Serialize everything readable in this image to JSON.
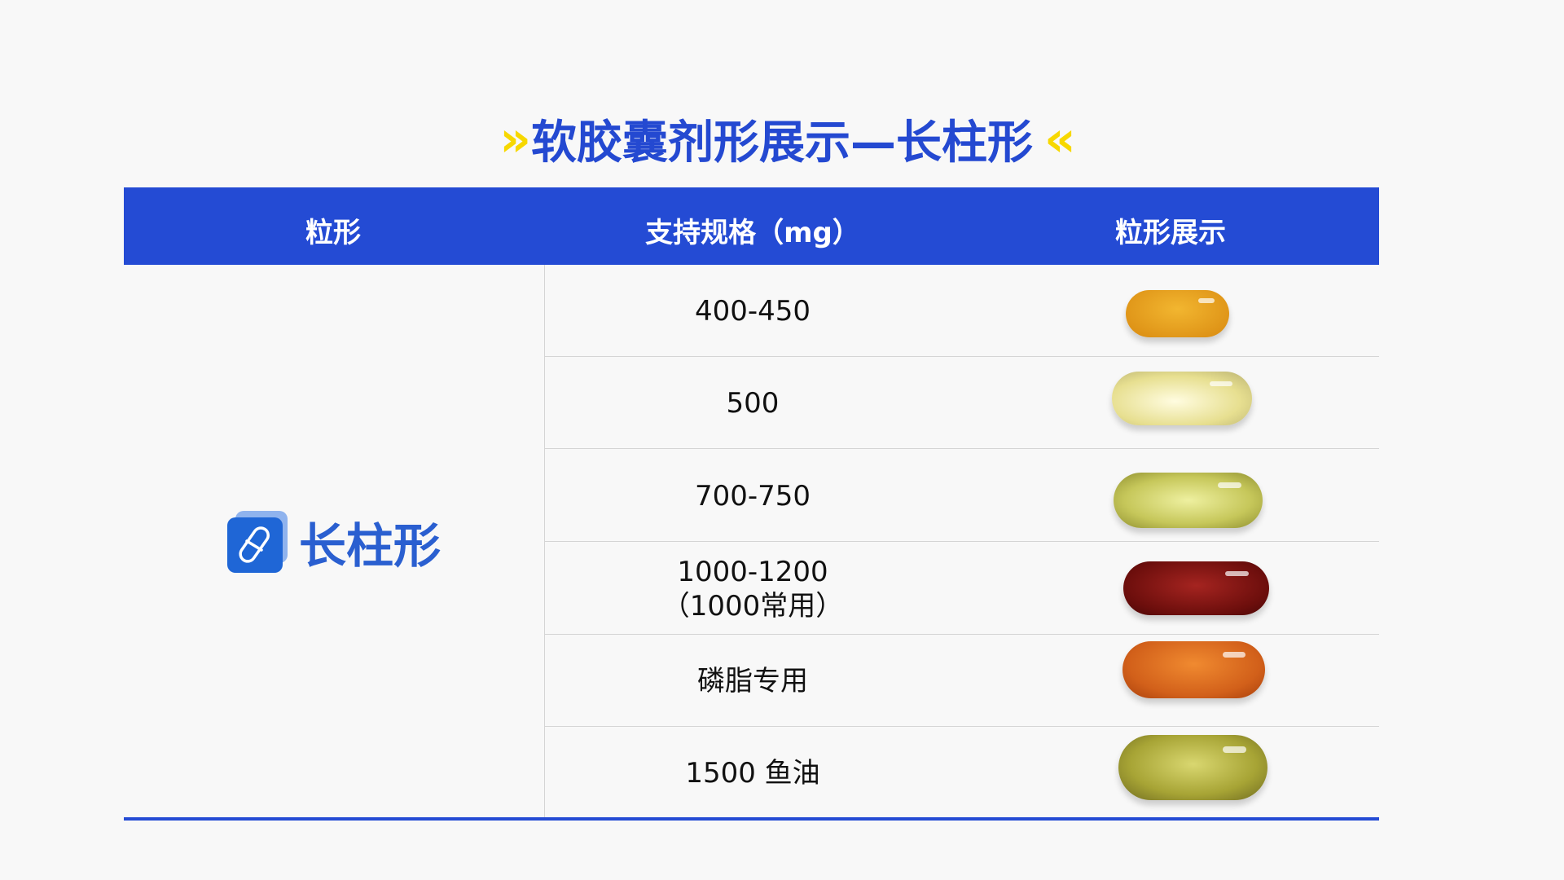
{
  "title": {
    "text": "软胶囊剂形展示—长柱形",
    "left_deco": "»",
    "right_deco": "«",
    "accent": "#f7d800",
    "color": "#2449d1"
  },
  "table": {
    "headers": [
      "粒形",
      "支持规格（mg）",
      "粒形展示"
    ],
    "header_bg": "#244bd4",
    "shape": {
      "label": "长柱形",
      "icon": "capsule-icon"
    },
    "rows": [
      {
        "spec": "400-450",
        "capsule_color": "#e9a21e"
      },
      {
        "spec": "500",
        "capsule_color": "#f1eca6"
      },
      {
        "spec": "700-750",
        "capsule_color": "#cfd06a"
      },
      {
        "spec": "1000-1200\n（1000常用）",
        "spec_line1": "1000-1200",
        "spec_line2": "（1000常用）",
        "capsule_color": "#7a1210"
      },
      {
        "spec": "磷脂专用",
        "capsule_color": "#d8661a"
      },
      {
        "spec": "1500 鱼油",
        "capsule_color": "#a7a435"
      }
    ]
  }
}
